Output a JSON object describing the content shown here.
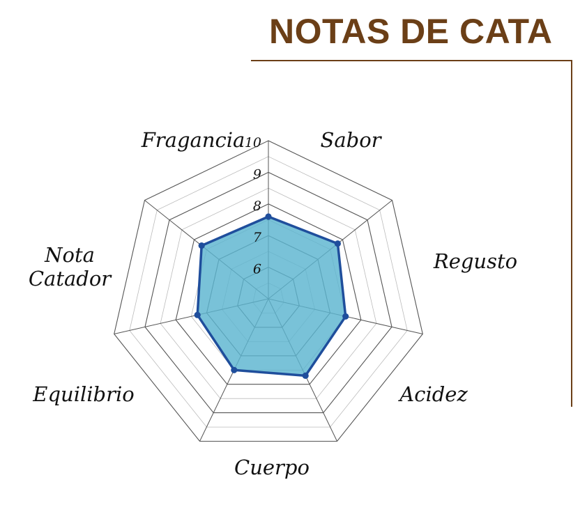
{
  "header": {
    "title": "NOTAS DE CATA"
  },
  "chart_data": {
    "type": "radar",
    "title": "",
    "categories": [
      "Fragancia",
      "Sabor",
      "Regusto",
      "Acidez",
      "Cuerpo",
      "Equilibrio",
      "Nota Catador"
    ],
    "values": [
      7.6,
      7.8,
      7.5,
      7.7,
      7.5,
      7.3,
      7.7
    ],
    "rlim": [
      5,
      10
    ],
    "ticks": [
      "6",
      "7",
      "8",
      "9",
      "10"
    ],
    "grid": true,
    "legend": "none",
    "colors": {
      "fill": "#5bb5cf",
      "line": "#1f4e9c",
      "grid": "#555555",
      "minor_grid": "#bbbbbb"
    }
  }
}
